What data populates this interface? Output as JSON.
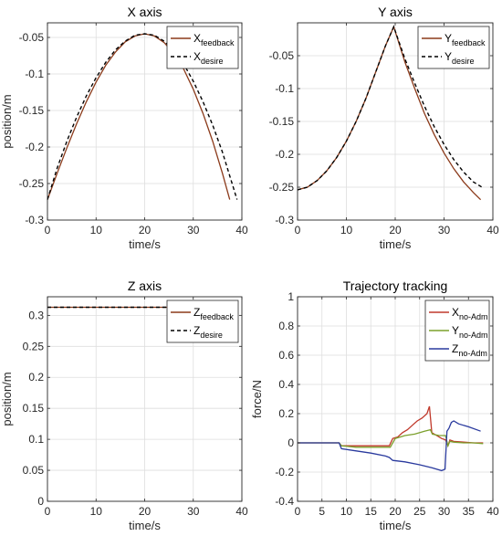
{
  "chart_data": [
    {
      "type": "line",
      "title": "X axis",
      "xlabel": "time/s",
      "ylabel": "position/m",
      "xlim": [
        0,
        40
      ],
      "ylim": [
        -0.3,
        -0.03
      ],
      "xticks": [
        0,
        10,
        20,
        30,
        40
      ],
      "yticks": [
        -0.3,
        -0.25,
        -0.2,
        -0.15,
        -0.1,
        -0.05
      ],
      "ytick_labels": [
        "-0.3",
        "-0.25",
        "-0.2",
        "-0.15",
        "-0.1",
        "-0.05"
      ],
      "grid": true,
      "legend": "top-right",
      "series": [
        {
          "name": "X",
          "name_sub": "feedback",
          "style": "solid",
          "color": "#8b3a1a",
          "x": [
            0,
            2,
            4,
            6,
            8,
            10,
            12,
            14,
            16,
            18,
            20,
            22,
            24,
            26,
            28,
            30,
            32,
            34,
            36,
            37.5
          ],
          "y": [
            -0.272,
            -0.236,
            -0.201,
            -0.168,
            -0.138,
            -0.111,
            -0.088,
            -0.07,
            -0.056,
            -0.048,
            -0.045,
            -0.048,
            -0.057,
            -0.072,
            -0.093,
            -0.121,
            -0.154,
            -0.192,
            -0.236,
            -0.272
          ]
        },
        {
          "name": "X",
          "name_sub": "desire",
          "style": "dashed",
          "color": "#000000",
          "x": [
            0,
            2,
            4,
            6,
            8,
            10,
            12,
            14,
            16,
            18,
            20,
            22,
            24,
            26,
            28,
            30,
            32,
            34,
            36,
            38,
            39
          ],
          "y": [
            -0.272,
            -0.229,
            -0.192,
            -0.159,
            -0.13,
            -0.105,
            -0.084,
            -0.067,
            -0.055,
            -0.047,
            -0.045,
            -0.047,
            -0.055,
            -0.068,
            -0.086,
            -0.11,
            -0.138,
            -0.17,
            -0.207,
            -0.25,
            -0.272
          ]
        }
      ]
    },
    {
      "type": "line",
      "title": "Y axis",
      "xlabel": "time/s",
      "ylabel": "",
      "xlim": [
        0,
        40
      ],
      "ylim": [
        -0.3,
        0.0
      ],
      "xticks": [
        0,
        10,
        20,
        30,
        40
      ],
      "yticks": [
        -0.3,
        -0.25,
        -0.2,
        -0.15,
        -0.1,
        -0.05
      ],
      "ytick_labels": [
        "-0.3",
        "-0.25",
        "-0.2",
        "-0.15",
        "-0.1",
        "-0.05"
      ],
      "grid": true,
      "legend": "top-right",
      "series": [
        {
          "name": "Y",
          "name_sub": "feedback",
          "style": "solid",
          "color": "#8b3a1a",
          "x": [
            0,
            2,
            4,
            6,
            8,
            10,
            12,
            14,
            16,
            18,
            19.7,
            22,
            24,
            26,
            28,
            30,
            32,
            34,
            36,
            37.5
          ],
          "y": [
            -0.254,
            -0.25,
            -0.24,
            -0.225,
            -0.205,
            -0.18,
            -0.15,
            -0.115,
            -0.075,
            -0.035,
            -0.006,
            -0.06,
            -0.1,
            -0.138,
            -0.17,
            -0.198,
            -0.222,
            -0.242,
            -0.258,
            -0.269
          ]
        },
        {
          "name": "Y",
          "name_sub": "desire",
          "style": "dashed",
          "color": "#000000",
          "x": [
            0,
            2,
            4,
            6,
            8,
            10,
            12,
            14,
            16,
            18,
            19.7,
            22,
            24,
            26,
            28,
            30,
            32,
            34,
            36,
            38
          ],
          "y": [
            -0.254,
            -0.25,
            -0.24,
            -0.225,
            -0.205,
            -0.18,
            -0.15,
            -0.115,
            -0.075,
            -0.035,
            -0.006,
            -0.055,
            -0.092,
            -0.127,
            -0.158,
            -0.185,
            -0.208,
            -0.227,
            -0.242,
            -0.251
          ]
        }
      ]
    },
    {
      "type": "line",
      "title": "Z axis",
      "xlabel": "time/s",
      "ylabel": "position/m",
      "xlim": [
        0,
        40
      ],
      "ylim": [
        0.0,
        0.33
      ],
      "xticks": [
        0,
        10,
        20,
        30,
        40
      ],
      "yticks": [
        0,
        0.05,
        0.1,
        0.15,
        0.2,
        0.25,
        0.3
      ],
      "ytick_labels": [
        "0",
        "0.05",
        "0.1",
        "0.15",
        "0.2",
        "0.25",
        "0.3"
      ],
      "grid": true,
      "legend": "top-right",
      "series": [
        {
          "name": "Z",
          "name_sub": "feedback",
          "style": "solid",
          "color": "#8b3a1a",
          "x": [
            0,
            10,
            20,
            30,
            37.5
          ],
          "y": [
            0.313,
            0.313,
            0.313,
            0.313,
            0.313
          ]
        },
        {
          "name": "Z",
          "name_sub": "desire",
          "style": "dashed",
          "color": "#000000",
          "x": [
            0,
            10,
            20,
            30,
            37.5
          ],
          "y": [
            0.313,
            0.313,
            0.313,
            0.313,
            0.313
          ]
        }
      ]
    },
    {
      "type": "line",
      "title": "Trajectory tracking",
      "xlabel": "time/s",
      "ylabel": "force/N",
      "xlim": [
        0,
        40
      ],
      "ylim": [
        -0.4,
        1.0
      ],
      "xticks": [
        0,
        5,
        10,
        15,
        20,
        25,
        30,
        35,
        40
      ],
      "yticks": [
        -0.4,
        -0.2,
        0,
        0.2,
        0.4,
        0.6,
        0.8,
        1
      ],
      "ytick_labels": [
        "-0.4",
        "-0.2",
        "0",
        "0.2",
        "0.4",
        "0.6",
        "0.8",
        "1"
      ],
      "grid": true,
      "legend": "top-right",
      "series": [
        {
          "name": "X",
          "name_sub": "no-Adm",
          "style": "solid",
          "color": "#c0392b",
          "x": [
            0,
            8.5,
            9,
            12,
            15,
            18,
            18.8,
            19.5,
            20.5,
            21.5,
            22.5,
            23.5,
            24.5,
            25.5,
            26.5,
            27,
            27.5,
            28.5,
            29.5,
            30.3,
            30.8,
            31.2,
            32,
            34,
            36,
            38
          ],
          "y": [
            0,
            0,
            -0.02,
            -0.02,
            -0.02,
            -0.02,
            -0.02,
            0.03,
            0.04,
            0.07,
            0.09,
            0.12,
            0.15,
            0.17,
            0.2,
            0.25,
            0.07,
            0.05,
            0.03,
            0.02,
            -0.02,
            0.02,
            0.01,
            0.005,
            0.0,
            0.0
          ]
        },
        {
          "name": "Y",
          "name_sub": "no-Adm",
          "style": "solid",
          "color": "#7ca02c",
          "x": [
            0,
            8.5,
            9,
            12,
            15,
            18,
            19,
            20,
            22,
            24,
            26,
            27.2,
            27.6,
            29,
            30.3,
            30.8,
            31.2,
            32,
            34,
            36,
            38
          ],
          "y": [
            0,
            0,
            -0.02,
            -0.03,
            -0.03,
            -0.03,
            -0.03,
            0.03,
            0.05,
            0.06,
            0.08,
            0.09,
            0.06,
            0.05,
            0.05,
            -0.02,
            0.01,
            0.005,
            0.0,
            0.0,
            -0.005
          ]
        },
        {
          "name": "Z",
          "name_sub": "no-Adm",
          "style": "solid",
          "color": "#2a3a9e",
          "x": [
            0,
            8.5,
            9,
            12,
            15,
            18,
            18.8,
            19.5,
            22,
            25,
            27.5,
            29.5,
            30.2,
            30.6,
            31,
            31.5,
            32,
            33,
            35,
            37.5
          ],
          "y": [
            0,
            0,
            -0.04,
            -0.055,
            -0.07,
            -0.09,
            -0.1,
            -0.12,
            -0.13,
            -0.15,
            -0.17,
            -0.19,
            -0.18,
            0.08,
            0.1,
            0.14,
            0.15,
            0.13,
            0.11,
            0.08
          ]
        }
      ]
    }
  ]
}
